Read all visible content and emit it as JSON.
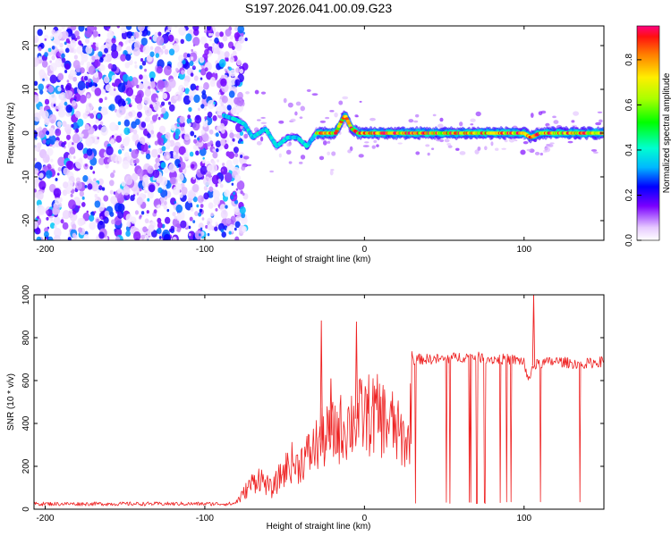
{
  "title": "S197.2026.041.00.09.G23",
  "chart_data": [
    {
      "type": "heatmap",
      "xlabel": "Height of straight line (km)",
      "ylabel": "Frequency (Hz)",
      "xlim": [
        -207,
        150
      ],
      "ylim": [
        -24.5,
        24.5
      ],
      "xticks": [
        "-200",
        "-100",
        "0",
        "100"
      ],
      "yticks": [
        "20",
        "10",
        "0",
        "-10",
        "-20"
      ],
      "colorbar": {
        "label": "Normalized spectral amplitude",
        "range": [
          0.0,
          0.95
        ],
        "ticks": [
          "0.0",
          "0.2",
          "0.4",
          "0.6",
          "0.8"
        ]
      },
      "regions": [
        {
          "x_range": [
            -207,
            -80
          ],
          "description_value": 0.15
        },
        {
          "x_range": [
            -80,
            -30
          ],
          "description_value": 0.35
        },
        {
          "x_range": [
            -30,
            150
          ],
          "description_value": 0.9
        }
      ],
      "ridge": {
        "x": [
          -88,
          -80,
          -75,
          -70,
          -62,
          -55,
          -48,
          -42,
          -36,
          -30,
          -25,
          -18,
          -14,
          -12,
          -8,
          -4,
          0,
          20,
          50,
          80,
          100,
          104,
          110,
          130,
          150
        ],
        "y": [
          4,
          3,
          2,
          -1,
          1,
          -3,
          -1,
          -1,
          -3,
          0,
          0,
          0,
          3,
          4,
          1,
          0,
          0,
          0,
          0,
          0,
          0,
          -1,
          0,
          0,
          0
        ]
      }
    },
    {
      "type": "line",
      "xlabel": "Height of straight line (km)",
      "ylabel": "SNR (10 * v/v)",
      "xlim": [
        -207,
        150
      ],
      "ylim": [
        0,
        1000
      ],
      "xticks": [
        "-200",
        "-100",
        "0",
        "100"
      ],
      "yticks": [
        "0",
        "200",
        "400",
        "600",
        "800",
        "1000"
      ],
      "color": "#ee2222",
      "series": [
        {
          "x": [
            -207,
            -150,
            -100,
            -82,
            -78,
            -72,
            -66,
            -62,
            -58,
            -54,
            -50,
            -46,
            -42,
            -38,
            -34,
            -30,
            -26,
            -22,
            -18,
            -14,
            -10,
            -6,
            -2,
            2,
            6,
            10,
            14,
            18,
            22,
            26,
            28,
            30,
            32,
            40,
            50,
            60,
            70,
            80,
            90,
            100,
            102,
            106,
            110,
            120,
            130,
            140,
            150
          ],
          "y": [
            25,
            25,
            25,
            25,
            50,
            110,
            150,
            120,
            90,
            140,
            180,
            220,
            200,
            240,
            260,
            300,
            330,
            340,
            360,
            380,
            400,
            420,
            430,
            440,
            440,
            430,
            410,
            390,
            340,
            320,
            300,
            690,
            700,
            700,
            700,
            710,
            710,
            700,
            700,
            690,
            600,
            670,
            680,
            690,
            680,
            680,
            690
          ]
        }
      ],
      "spikes": [
        {
          "x": -27,
          "y": 880
        },
        {
          "x": -21,
          "y": 610
        },
        {
          "x": -5,
          "y": 875
        },
        {
          "x": 106,
          "y": 1000
        }
      ]
    }
  ]
}
